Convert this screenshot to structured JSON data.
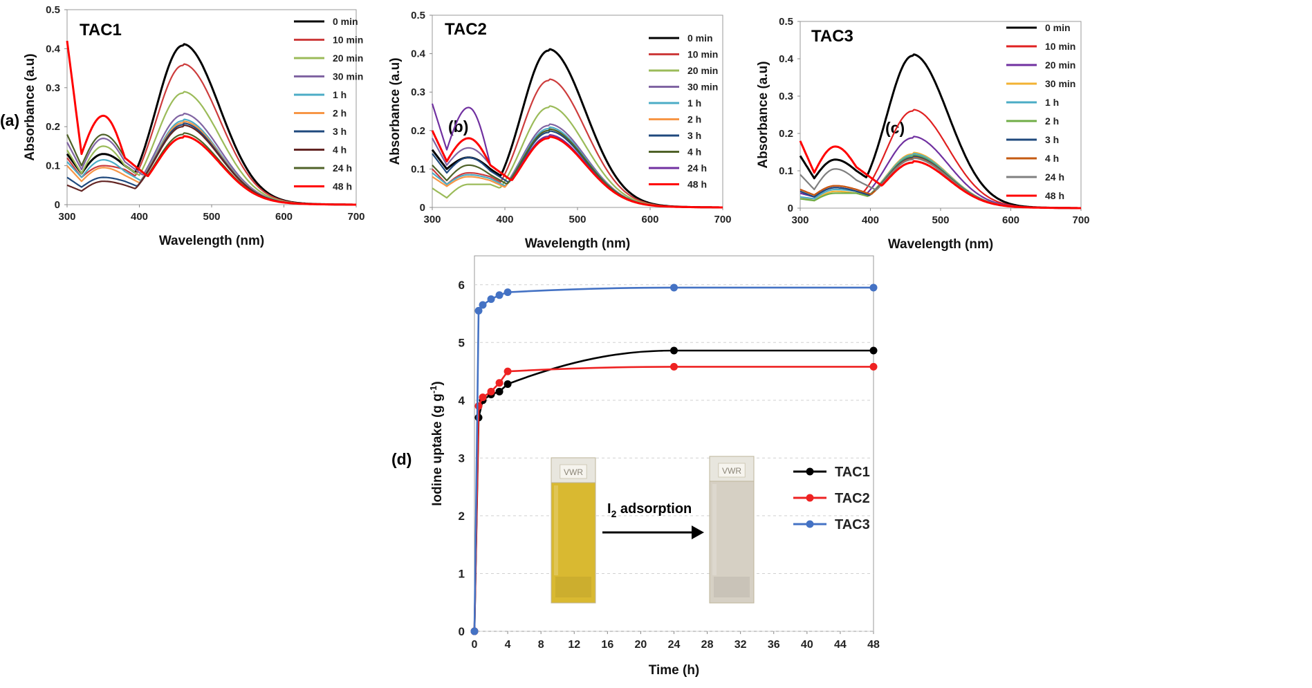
{
  "panels": [
    "(a)",
    "(b)",
    "(c)",
    "(d)"
  ],
  "colors": {
    "0 min": "#000000",
    "10 min": "#cd3c3c",
    "20 min": "#9bbb59",
    "30 min": "#8064a2",
    "1 h": "#4bacc6",
    "2 h": "#f79646",
    "3 h": "#1f497d",
    "4 h": "#632523",
    "24 h": "#4f6228",
    "48 h": "#ff0000"
  },
  "inset": {
    "arrow_label_prefix": "I",
    "arrow_label_sub": "2",
    "arrow_label_suffix": " adsorption",
    "vial_left_color": "#d9b931",
    "vial_right_color": "#d6d0c4",
    "vial_brand": "VWR"
  },
  "chart_data": [
    {
      "type": "line",
      "title": "TAC1",
      "xlabel": "Wavelength (nm)",
      "ylabel": "Absorbance (a.u)",
      "xlim": [
        300,
        700
      ],
      "ylim": [
        0,
        0.5
      ],
      "xticks": [
        "300",
        "400",
        "500",
        "600",
        "700"
      ],
      "yticks": [
        "0",
        "0.1",
        "0.2",
        "0.3",
        "0.4",
        "0.5"
      ],
      "legend": "top-right",
      "series": [
        {
          "name": "0 min",
          "color": "#000000",
          "short": [
            0.13,
            0.08,
            0.13,
            0.1
          ],
          "peak": 0.408
        },
        {
          "name": "10 min",
          "color": "#cd3c3c",
          "short": [
            0.12,
            0.07,
            0.1,
            0.09
          ],
          "peak": 0.357
        },
        {
          "name": "20 min",
          "color": "#9bbb59",
          "short": [
            0.14,
            0.08,
            0.15,
            0.1
          ],
          "peak": 0.286
        },
        {
          "name": "30 min",
          "color": "#8064a2",
          "short": [
            0.16,
            0.09,
            0.17,
            0.11
          ],
          "peak": 0.23
        },
        {
          "name": "1 h",
          "color": "#4bacc6",
          "short": [
            0.11,
            0.07,
            0.115,
            0.085
          ],
          "peak": 0.215
        },
        {
          "name": "2 h",
          "color": "#f79646",
          "short": [
            0.1,
            0.06,
            0.095,
            0.075
          ],
          "peak": 0.21
        },
        {
          "name": "3 h",
          "color": "#1f497d",
          "short": [
            0.07,
            0.045,
            0.07,
            0.06
          ],
          "peak": 0.205
        },
        {
          "name": "4 h",
          "color": "#632523",
          "short": [
            0.05,
            0.035,
            0.06,
            0.05
          ],
          "peak": 0.2
        },
        {
          "name": "24 h",
          "color": "#4f6228",
          "short": [
            0.18,
            0.1,
            0.18,
            0.12
          ],
          "peak": 0.18
        },
        {
          "name": "48 h",
          "color": "#ff0000",
          "short": [
            0.42,
            0.13,
            0.228,
            0.12
          ],
          "peak": 0.172
        }
      ]
    },
    {
      "type": "line",
      "title": "TAC2",
      "xlabel": "Wavelength (nm)",
      "ylabel": "Absorbance (a.u)",
      "xlim": [
        300,
        700
      ],
      "ylim": [
        0,
        0.5
      ],
      "xticks": [
        "300",
        "400",
        "500",
        "600",
        "700"
      ],
      "yticks": [
        "0",
        "0.1",
        "0.2",
        "0.3",
        "0.4",
        "0.5"
      ],
      "legend": "top-right",
      "series": [
        {
          "name": "0 min",
          "color": "#000000",
          "short": [
            0.15,
            0.1,
            0.13,
            0.1
          ],
          "peak": 0.408
        },
        {
          "name": "10 min",
          "color": "#cd3c3c",
          "short": [
            0.1,
            0.06,
            0.09,
            0.08
          ],
          "peak": 0.33
        },
        {
          "name": "20 min",
          "color": "#9bbb59",
          "short": [
            0.05,
            0.025,
            0.06,
            0.06
          ],
          "peak": 0.26
        },
        {
          "name": "30 min",
          "color": "#8064a2",
          "short": [
            0.18,
            0.11,
            0.155,
            0.11
          ],
          "peak": 0.213
        },
        {
          "name": "1 h",
          "color": "#4bacc6",
          "short": [
            0.09,
            0.06,
            0.085,
            0.075
          ],
          "peak": 0.205
        },
        {
          "name": "2 h",
          "color": "#f79646",
          "short": [
            0.08,
            0.055,
            0.08,
            0.07
          ],
          "peak": 0.2
        },
        {
          "name": "3 h",
          "color": "#1f497d",
          "short": [
            0.14,
            0.09,
            0.13,
            0.095
          ],
          "peak": 0.195
        },
        {
          "name": "4 h",
          "color": "#4f6228",
          "short": [
            0.11,
            0.07,
            0.11,
            0.085
          ],
          "peak": 0.2
        },
        {
          "name": "24 h",
          "color": "#7030a0",
          "short": [
            0.27,
            0.15,
            0.26,
            0.11
          ],
          "peak": 0.185
        },
        {
          "name": "48 h",
          "color": "#ff0000",
          "short": [
            0.2,
            0.12,
            0.18,
            0.11
          ],
          "peak": 0.18
        }
      ]
    },
    {
      "type": "line",
      "title": "TAC3",
      "xlabel": "Wavelength (nm)",
      "ylabel": "Absorbance (a.u)",
      "xlim": [
        300,
        700
      ],
      "ylim": [
        0,
        0.5
      ],
      "xticks": [
        "300",
        "400",
        "500",
        "600",
        "700"
      ],
      "yticks": [
        "0",
        "0.1",
        "0.2",
        "0.3",
        "0.4",
        "0.5"
      ],
      "legend": "top-right",
      "series": [
        {
          "name": "0 min",
          "color": "#000000",
          "short": [
            0.14,
            0.08,
            0.13,
            0.1
          ],
          "peak": 0.408
        },
        {
          "name": "10 min",
          "color": "#e02020",
          "short": [
            0.05,
            0.035,
            0.06,
            0.05
          ],
          "peak": 0.26
        },
        {
          "name": "20 min",
          "color": "#7030a0",
          "short": [
            0.04,
            0.03,
            0.055,
            0.045
          ],
          "peak": 0.188
        },
        {
          "name": "30 min",
          "color": "#f2b233",
          "short": [
            0.03,
            0.02,
            0.045,
            0.04
          ],
          "peak": 0.145
        },
        {
          "name": "1 h",
          "color": "#4bacc6",
          "short": [
            0.03,
            0.025,
            0.05,
            0.045
          ],
          "peak": 0.142
        },
        {
          "name": "2 h",
          "color": "#70ad47",
          "short": [
            0.025,
            0.02,
            0.04,
            0.04
          ],
          "peak": 0.138
        },
        {
          "name": "3 h",
          "color": "#1f497d",
          "short": [
            0.045,
            0.03,
            0.055,
            0.045
          ],
          "peak": 0.135
        },
        {
          "name": "4 h",
          "color": "#c55a11",
          "short": [
            0.05,
            0.035,
            0.06,
            0.05
          ],
          "peak": 0.132
        },
        {
          "name": "24 h",
          "color": "#7f7f7f",
          "short": [
            0.09,
            0.05,
            0.105,
            0.075
          ],
          "peak": 0.13
        },
        {
          "name": "48 h",
          "color": "#ff0000",
          "short": [
            0.18,
            0.095,
            0.165,
            0.11
          ],
          "peak": 0.122
        }
      ]
    },
    {
      "type": "line",
      "xlabel": "Time (h)",
      "ylabel_main": "Iodine uptake (g g",
      "ylabel_sup": "-1",
      "ylabel_end": ")",
      "xlim": [
        0,
        48
      ],
      "ylim": [
        0,
        6.5
      ],
      "xticks": [
        "0",
        "4",
        "8",
        "12",
        "16",
        "20",
        "24",
        "28",
        "32",
        "36",
        "40",
        "44",
        "48"
      ],
      "yticks": [
        "0",
        "1",
        "2",
        "3",
        "4",
        "5",
        "6"
      ],
      "legend": "right",
      "series": [
        {
          "name": "TAC1",
          "color": "#000000",
          "x": [
            0,
            0.5,
            1,
            2,
            3,
            4,
            24,
            48
          ],
          "y": [
            0,
            3.7,
            4.0,
            4.1,
            4.15,
            4.28,
            4.86,
            4.86
          ]
        },
        {
          "name": "TAC2",
          "color": "#ee2222",
          "x": [
            0,
            0.5,
            1,
            2,
            3,
            4,
            24,
            48
          ],
          "y": [
            0,
            3.9,
            4.05,
            4.15,
            4.3,
            4.5,
            4.58,
            4.58
          ]
        },
        {
          "name": "TAC3",
          "color": "#4472c4",
          "x": [
            0,
            0.5,
            1,
            2,
            3,
            4,
            24,
            48
          ],
          "y": [
            0,
            5.55,
            5.65,
            5.75,
            5.82,
            5.87,
            5.95,
            5.95
          ]
        }
      ]
    }
  ]
}
